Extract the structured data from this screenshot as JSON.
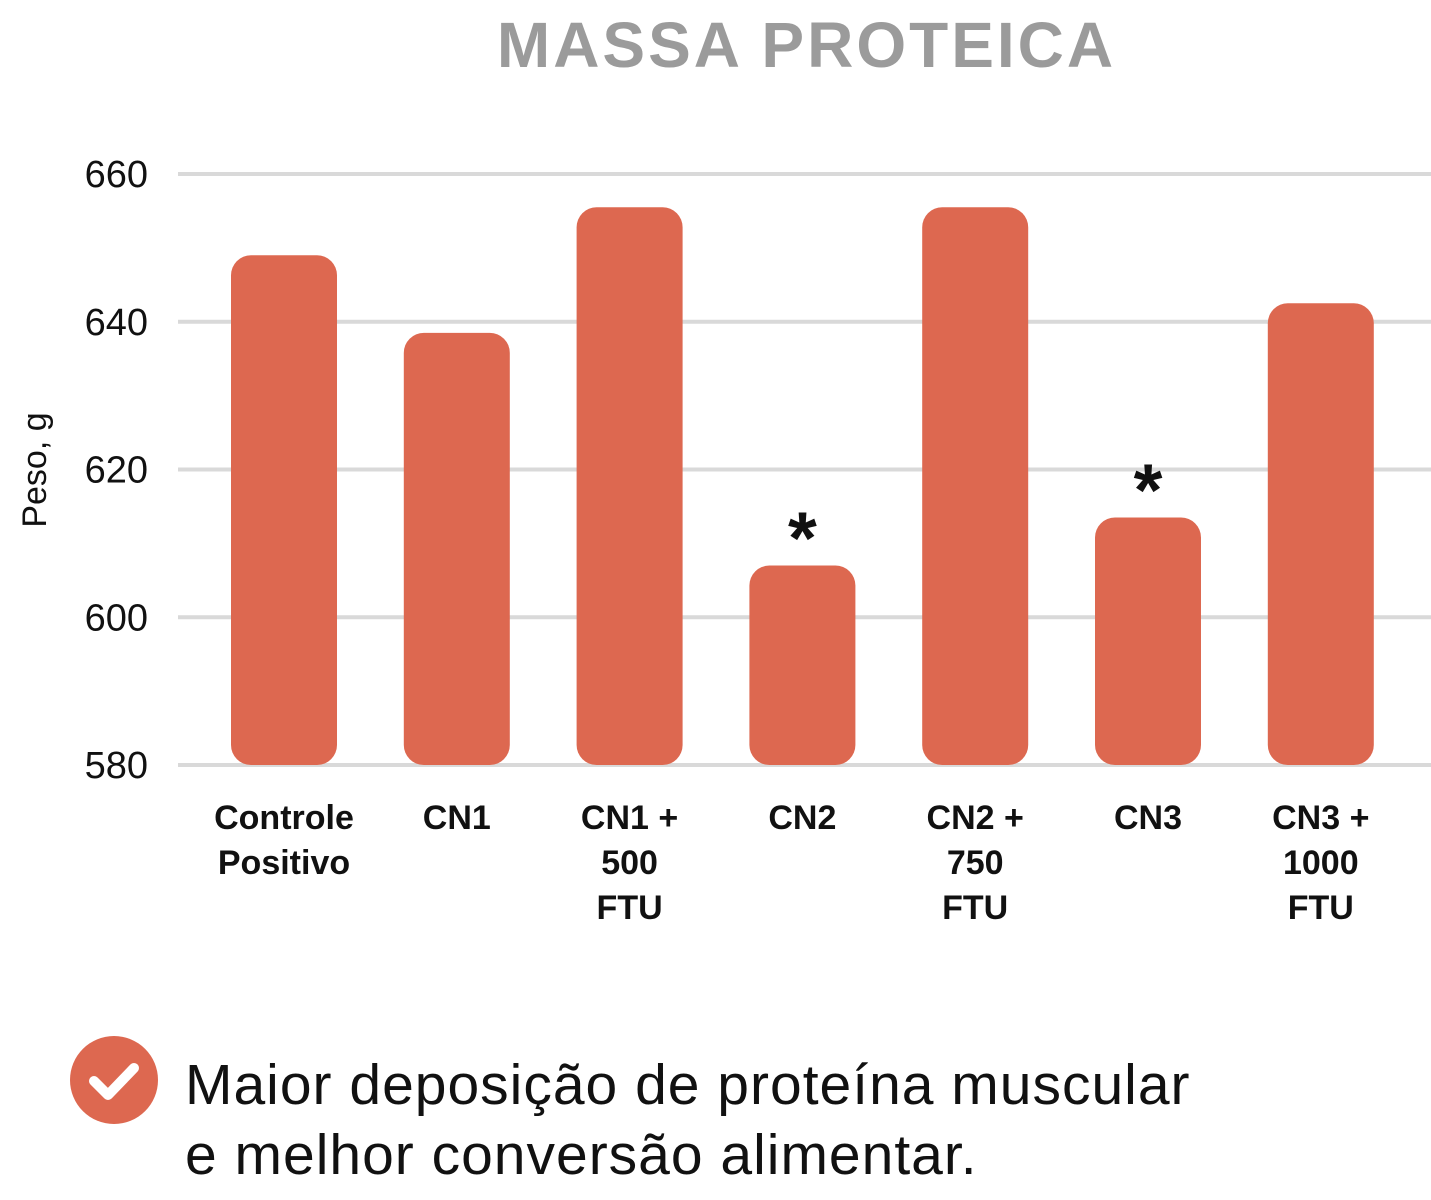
{
  "chart_data": {
    "type": "bar",
    "title": "MASSA PROTEICA",
    "ylabel": "Peso, g",
    "xlabel": "",
    "ylim": [
      580,
      660
    ],
    "yticks": [
      580,
      600,
      620,
      640,
      660
    ],
    "grid": true,
    "bar_color": "#dd6850",
    "categories": [
      [
        "Controle",
        "Positivo"
      ],
      [
        "CN1"
      ],
      [
        "CN1 +",
        "500",
        "FTU"
      ],
      [
        "CN2"
      ],
      [
        "CN2 +",
        "750",
        "FTU"
      ],
      [
        "CN3"
      ],
      [
        "CN3 +",
        "1000",
        "FTU"
      ]
    ],
    "values": [
      649,
      638.5,
      655.5,
      607,
      655.5,
      613.5,
      642.5
    ],
    "annotations": [
      "",
      "",
      "",
      "*",
      "",
      "*",
      ""
    ]
  },
  "footer": {
    "icon": "check-circle-icon",
    "accent": "#dd6850",
    "line1": "Maior deposição de proteína muscular",
    "line2": "e melhor conversão alimentar."
  }
}
